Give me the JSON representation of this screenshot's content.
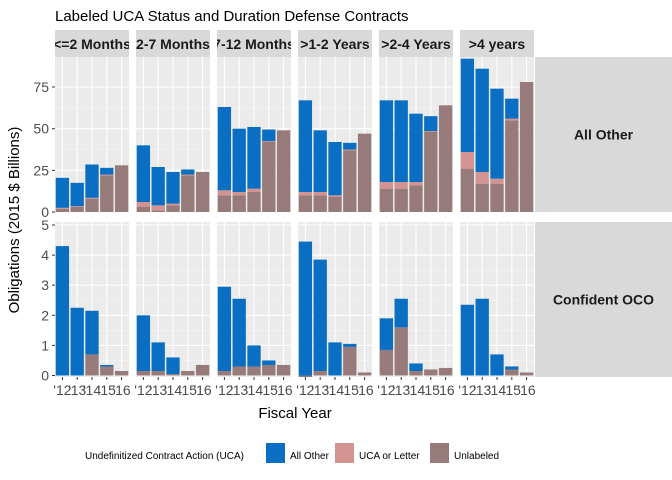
{
  "chart_data": {
    "type": "bar",
    "stacked": true,
    "title": "Labeled UCA Status and Duration Defense Contracts",
    "xlabel": "Fiscal Year",
    "ylabel": "Obligations (2015 $ Billions)",
    "x_ticks": [
      "'12",
      "'13",
      "'14",
      "'15",
      "'16"
    ],
    "columns": [
      "<=2 Months",
      "2-7 Months",
      "7-12 Months",
      ">1-2 Years",
      ">2-4 Years",
      ">4 years"
    ],
    "rows": [
      {
        "label": "All Other",
        "ylim": [
          0,
          93
        ],
        "ticks": [
          0,
          25,
          50,
          75
        ]
      },
      {
        "label": "Confident OCO",
        "ylim": [
          -0.05,
          5.1
        ],
        "ticks": [
          0,
          1,
          2,
          3,
          4,
          5
        ]
      }
    ],
    "legend": {
      "title": "Undefinitized Contract Action (UCA)",
      "position": "bottom",
      "entries": [
        {
          "name": "All Other",
          "color": "#0a6fc2"
        },
        {
          "name": "UCA or Letter",
          "color": "#d39391"
        },
        {
          "name": "Unlabeled",
          "color": "#977a7a"
        }
      ]
    },
    "panels": [
      {
        "row": 0,
        "col": 0,
        "bars": [
          {
            "year": "'12",
            "unlabeled": 2,
            "uca": 0.5,
            "other": 18
          },
          {
            "year": "'13",
            "unlabeled": 3,
            "uca": 0.5,
            "other": 14
          },
          {
            "year": "'14",
            "unlabeled": 8,
            "uca": 0.5,
            "other": 20
          },
          {
            "year": "'15",
            "unlabeled": 22,
            "uca": 0.5,
            "other": 4
          },
          {
            "year": "'16",
            "unlabeled": 28,
            "uca": 0,
            "other": 0
          }
        ]
      },
      {
        "row": 0,
        "col": 1,
        "bars": [
          {
            "year": "'12",
            "unlabeled": 3,
            "uca": 3,
            "other": 34
          },
          {
            "year": "'13",
            "unlabeled": 1,
            "uca": 3,
            "other": 23
          },
          {
            "year": "'14",
            "unlabeled": 4,
            "uca": 1,
            "other": 19
          },
          {
            "year": "'15",
            "unlabeled": 22,
            "uca": 0.5,
            "other": 3
          },
          {
            "year": "'16",
            "unlabeled": 24,
            "uca": 0,
            "other": 0
          }
        ]
      },
      {
        "row": 0,
        "col": 2,
        "bars": [
          {
            "year": "'12",
            "unlabeled": 10,
            "uca": 3,
            "other": 50
          },
          {
            "year": "'13",
            "unlabeled": 10,
            "uca": 2,
            "other": 38
          },
          {
            "year": "'14",
            "unlabeled": 12,
            "uca": 2,
            "other": 37
          },
          {
            "year": "'15",
            "unlabeled": 42,
            "uca": 0.5,
            "other": 7
          },
          {
            "year": "'16",
            "unlabeled": 49,
            "uca": 0,
            "other": 0
          }
        ]
      },
      {
        "row": 0,
        "col": 3,
        "bars": [
          {
            "year": "'12",
            "unlabeled": 10,
            "uca": 2,
            "other": 55
          },
          {
            "year": "'13",
            "unlabeled": 10,
            "uca": 2,
            "other": 37
          },
          {
            "year": "'14",
            "unlabeled": 9,
            "uca": 1,
            "other": 32
          },
          {
            "year": "'15",
            "unlabeled": 37,
            "uca": 0.5,
            "other": 4
          },
          {
            "year": "'16",
            "unlabeled": 47,
            "uca": 0,
            "other": 0
          }
        ]
      },
      {
        "row": 0,
        "col": 4,
        "bars": [
          {
            "year": "'12",
            "unlabeled": 14,
            "uca": 4,
            "other": 49
          },
          {
            "year": "'13",
            "unlabeled": 14,
            "uca": 4,
            "other": 49
          },
          {
            "year": "'14",
            "unlabeled": 16,
            "uca": 2,
            "other": 41
          },
          {
            "year": "'15",
            "unlabeled": 48,
            "uca": 0.5,
            "other": 9
          },
          {
            "year": "'16",
            "unlabeled": 64,
            "uca": 0,
            "other": 0
          }
        ]
      },
      {
        "row": 0,
        "col": 5,
        "bars": [
          {
            "year": "'12",
            "unlabeled": 26,
            "uca": 10,
            "other": 56
          },
          {
            "year": "'13",
            "unlabeled": 17,
            "uca": 7,
            "other": 62
          },
          {
            "year": "'14",
            "unlabeled": 17,
            "uca": 3,
            "other": 54
          },
          {
            "year": "'15",
            "unlabeled": 55,
            "uca": 1,
            "other": 12
          },
          {
            "year": "'16",
            "unlabeled": 78,
            "uca": 0,
            "other": 0
          }
        ]
      },
      {
        "row": 1,
        "col": 0,
        "bars": [
          {
            "year": "'12",
            "unlabeled": 0,
            "uca": 0,
            "other": 4.3
          },
          {
            "year": "'13",
            "unlabeled": 0,
            "uca": 0,
            "other": 2.25
          },
          {
            "year": "'14",
            "unlabeled": 0.7,
            "uca": 0,
            "other": 1.45
          },
          {
            "year": "'15",
            "unlabeled": 0.3,
            "uca": 0,
            "other": 0.05
          },
          {
            "year": "'16",
            "unlabeled": 0.15,
            "uca": 0,
            "other": 0
          }
        ]
      },
      {
        "row": 1,
        "col": 1,
        "bars": [
          {
            "year": "'12",
            "unlabeled": 0.15,
            "uca": 0,
            "other": 1.85
          },
          {
            "year": "'13",
            "unlabeled": 0.15,
            "uca": 0,
            "other": 0.95
          },
          {
            "year": "'14",
            "unlabeled": 0.05,
            "uca": 0,
            "other": 0.55
          },
          {
            "year": "'15",
            "unlabeled": 0.15,
            "uca": 0,
            "other": 0
          },
          {
            "year": "'16",
            "unlabeled": 0.35,
            "uca": 0,
            "other": 0
          }
        ]
      },
      {
        "row": 1,
        "col": 2,
        "bars": [
          {
            "year": "'12",
            "unlabeled": 0.15,
            "uca": 0,
            "other": 2.8
          },
          {
            "year": "'13",
            "unlabeled": 0.3,
            "uca": 0,
            "other": 2.25
          },
          {
            "year": "'14",
            "unlabeled": 0.3,
            "uca": 0,
            "other": 0.7
          },
          {
            "year": "'15",
            "unlabeled": 0.35,
            "uca": 0,
            "other": 0.15
          },
          {
            "year": "'16",
            "unlabeled": 0.35,
            "uca": 0,
            "other": 0
          }
        ]
      },
      {
        "row": 1,
        "col": 3,
        "bars": [
          {
            "year": "'12",
            "unlabeled": -0.05,
            "uca": 0,
            "other": 4.45
          },
          {
            "year": "'13",
            "unlabeled": 0.15,
            "uca": 0,
            "other": 3.7
          },
          {
            "year": "'14",
            "unlabeled": 0,
            "uca": 0,
            "other": 1.1
          },
          {
            "year": "'15",
            "unlabeled": 0.95,
            "uca": 0,
            "other": 0.1
          },
          {
            "year": "'16",
            "unlabeled": 0.1,
            "uca": 0,
            "other": 0
          }
        ]
      },
      {
        "row": 1,
        "col": 4,
        "bars": [
          {
            "year": "'12",
            "unlabeled": 0.85,
            "uca": 0,
            "other": 1.05
          },
          {
            "year": "'13",
            "unlabeled": 1.6,
            "uca": 0,
            "other": 0.95
          },
          {
            "year": "'14",
            "unlabeled": 0.15,
            "uca": 0,
            "other": 0.25
          },
          {
            "year": "'15",
            "unlabeled": 0.2,
            "uca": 0,
            "other": 0
          },
          {
            "year": "'16",
            "unlabeled": 0.25,
            "uca": 0,
            "other": 0
          }
        ]
      },
      {
        "row": 1,
        "col": 5,
        "bars": [
          {
            "year": "'12",
            "unlabeled": 0,
            "uca": 0,
            "other": 2.35
          },
          {
            "year": "'13",
            "unlabeled": 0,
            "uca": 0,
            "other": 2.55
          },
          {
            "year": "'14",
            "unlabeled": 0,
            "uca": 0,
            "other": 0.7
          },
          {
            "year": "'15",
            "unlabeled": 0.2,
            "uca": 0,
            "other": 0.1
          },
          {
            "year": "'16",
            "unlabeled": 0.1,
            "uca": 0,
            "other": 0
          }
        ]
      }
    ]
  }
}
